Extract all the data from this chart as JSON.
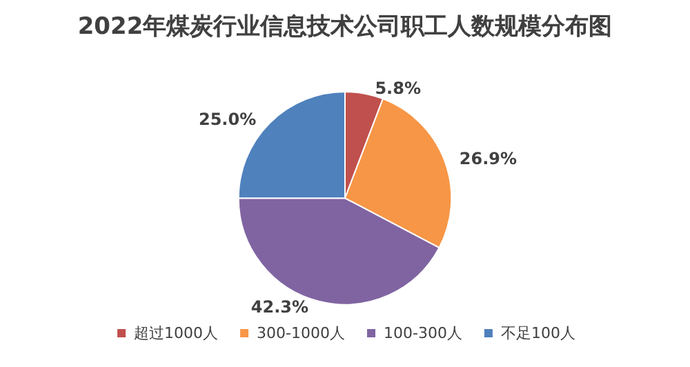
{
  "chart_data": {
    "type": "pie",
    "title": "2022年煤炭行业信息技术公司职工人数规模分布图",
    "categories": [
      "超过1000人",
      "300-1000人",
      "100-300人",
      "不足100人"
    ],
    "values": [
      5.8,
      26.9,
      42.3,
      25.0
    ],
    "colors": [
      "#c0504d",
      "#f79646",
      "#8064a2",
      "#4f81bd"
    ],
    "value_labels": [
      "5.8%",
      "26.9%",
      "42.3%",
      "25.0%"
    ],
    "legend": "bottom"
  }
}
